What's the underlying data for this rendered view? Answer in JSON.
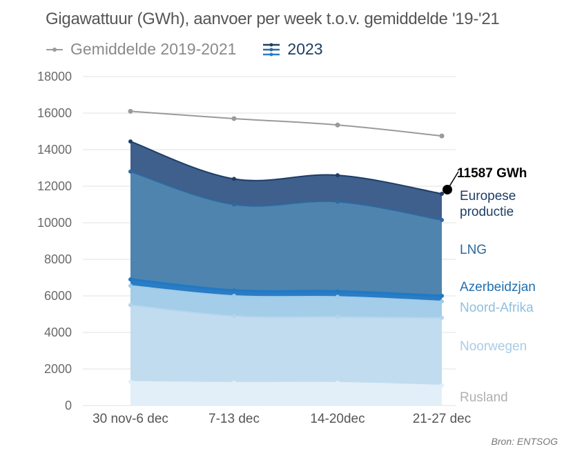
{
  "title": "Gigawattuur (GWh), aanvoer per week t.o.v. gemiddelde '19-'21",
  "legend": [
    {
      "label": "Gemiddelde 2019-2021",
      "icon": "gray-line-marker-icon",
      "color": "#9a9a9a"
    },
    {
      "label": "2023",
      "icon": "stacked-lines-marker-icon",
      "color": "#1e3e66"
    }
  ],
  "source": "Bron: ENTSOG",
  "chart_data": {
    "type": "area",
    "stacked": true,
    "title": "Gigawattuur (GWh), aanvoer per week t.o.v. gemiddelde '19-'21",
    "xlabel": "",
    "ylabel": "",
    "categories": [
      "30 nov-6 dec",
      "7-13 dec",
      "14-20dec",
      "21-27 dec"
    ],
    "ylim": [
      0,
      18000
    ],
    "yticks": [
      0,
      2000,
      4000,
      6000,
      8000,
      10000,
      12000,
      14000,
      16000,
      18000
    ],
    "grid": true,
    "series": [
      {
        "name": "Rusland",
        "values": [
          1300,
          1250,
          1250,
          1100
        ],
        "color": "#e2eff8",
        "label_color": "#b0b0b0"
      },
      {
        "name": "Noorwegen",
        "values": [
          4200,
          3650,
          3600,
          3700
        ],
        "color": "#c2dcef",
        "label_color": "#a9cce6"
      },
      {
        "name": "Noord-Afrika",
        "values": [
          1050,
          1100,
          1100,
          900
        ],
        "color": "#a3cde9",
        "label_color": "#8fc0e0"
      },
      {
        "name": "Azerbeidzjan",
        "values": [
          350,
          300,
          300,
          300
        ],
        "color": "#2b7cc4",
        "label_color": "#1f6fb0"
      },
      {
        "name": "LNG",
        "values": [
          5900,
          4700,
          4900,
          4150
        ],
        "color": "#4f84ae",
        "label_color": "#2d6a9a"
      },
      {
        "name": "Europese productie",
        "label_lines": [
          "Europese",
          "productie"
        ],
        "values": [
          1650,
          1400,
          1450,
          1437
        ],
        "color": "#3f5f8c",
        "label_color": "#1e3e66"
      }
    ],
    "reference_line": {
      "name": "Gemiddelde 2019-2021",
      "values": [
        16100,
        15700,
        15350,
        14750
      ],
      "color": "#9a9a9a"
    },
    "annotations": [
      {
        "text": "11587 GWh",
        "category": "21-27 dec",
        "value": 11587
      }
    ]
  }
}
